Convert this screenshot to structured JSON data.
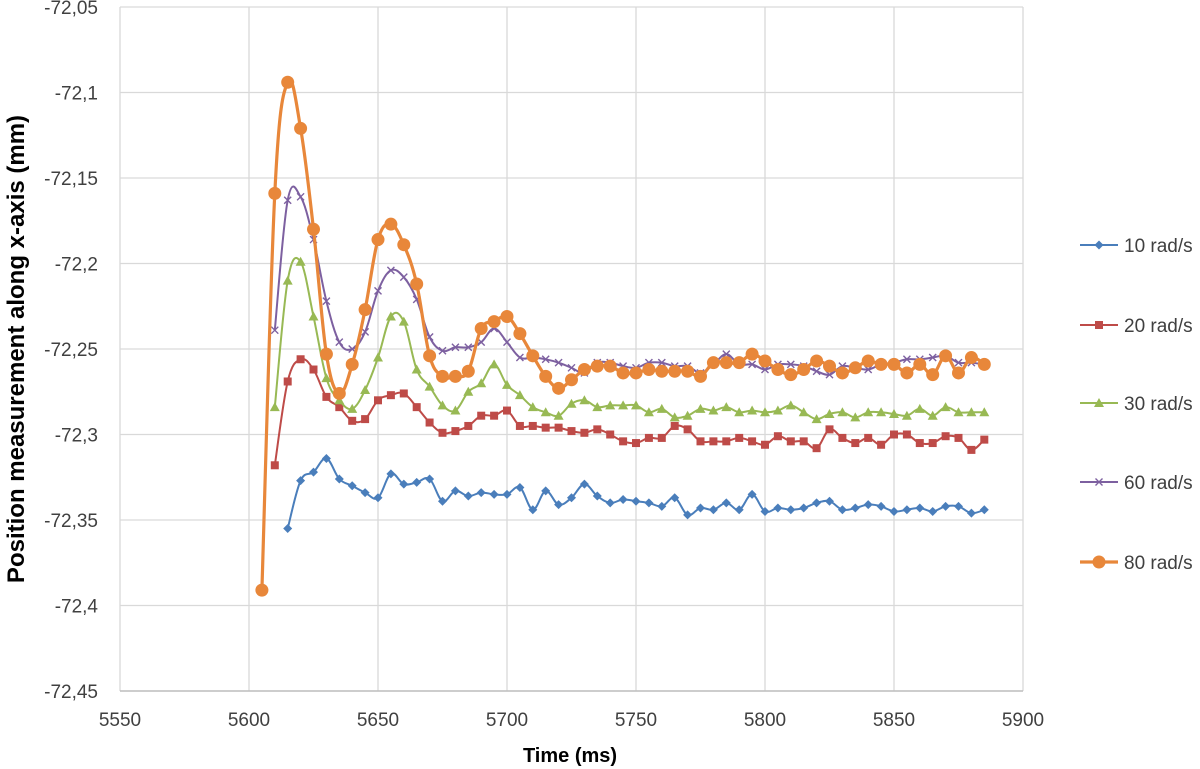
{
  "chart_data": {
    "type": "line",
    "title": "",
    "xlabel": "Time (ms)",
    "ylabel": "Position measurement along x-axis (mm)",
    "xlim": [
      5550,
      5900
    ],
    "ylim": [
      -72.45,
      -72.05
    ],
    "x_ticks": [
      {
        "value": 5550,
        "label": "5550"
      },
      {
        "value": 5600,
        "label": "5600"
      },
      {
        "value": 5650,
        "label": "5650"
      },
      {
        "value": 5700,
        "label": "5700"
      },
      {
        "value": 5750,
        "label": "5750"
      },
      {
        "value": 5800,
        "label": "5800"
      },
      {
        "value": 5850,
        "label": "5850"
      },
      {
        "value": 5900,
        "label": "5900"
      }
    ],
    "y_ticks": [
      {
        "value": -72.05,
        "label": "-72,05"
      },
      {
        "value": -72.1,
        "label": "-72,1"
      },
      {
        "value": -72.15,
        "label": "-72,15"
      },
      {
        "value": -72.2,
        "label": "-72,2"
      },
      {
        "value": -72.25,
        "label": "-72,25"
      },
      {
        "value": -72.3,
        "label": "-72,3"
      },
      {
        "value": -72.35,
        "label": "-72,35"
      },
      {
        "value": -72.4,
        "label": "-72,4"
      },
      {
        "value": -72.45,
        "label": "-72,45"
      }
    ],
    "grid": true,
    "legend_position": "right",
    "series": [
      {
        "name": "10 rad/s",
        "color": "#4a7ebb",
        "marker": "diamond",
        "x": [
          5615,
          5620,
          5625,
          5630,
          5635,
          5640,
          5645,
          5650,
          5655,
          5660,
          5665,
          5670,
          5675,
          5680,
          5685,
          5690,
          5695,
          5700,
          5705,
          5710,
          5715,
          5720,
          5725,
          5730,
          5735,
          5740,
          5745,
          5750,
          5755,
          5760,
          5765,
          5770,
          5775,
          5780,
          5785,
          5790,
          5795,
          5800,
          5805,
          5810,
          5815,
          5820,
          5825,
          5830,
          5835,
          5840,
          5845,
          5850,
          5855,
          5860,
          5865,
          5870,
          5875,
          5880,
          5885
        ],
        "y": [
          -72.355,
          -72.327,
          -72.322,
          -72.314,
          -72.326,
          -72.33,
          -72.334,
          -72.337,
          -72.323,
          -72.329,
          -72.328,
          -72.326,
          -72.339,
          -72.333,
          -72.336,
          -72.334,
          -72.335,
          -72.335,
          -72.331,
          -72.344,
          -72.333,
          -72.341,
          -72.337,
          -72.329,
          -72.336,
          -72.34,
          -72.338,
          -72.339,
          -72.34,
          -72.342,
          -72.337,
          -72.347,
          -72.343,
          -72.344,
          -72.34,
          -72.344,
          -72.335,
          -72.345,
          -72.343,
          -72.344,
          -72.343,
          -72.34,
          -72.339,
          -72.344,
          -72.343,
          -72.341,
          -72.342,
          -72.345,
          -72.344,
          -72.343,
          -72.345,
          -72.342,
          -72.342,
          -72.346,
          -72.344
        ]
      },
      {
        "name": "20 rad/s",
        "color": "#be4b48",
        "marker": "square",
        "x": [
          5610,
          5615,
          5620,
          5625,
          5630,
          5635,
          5640,
          5645,
          5650,
          5655,
          5660,
          5665,
          5670,
          5675,
          5680,
          5685,
          5690,
          5695,
          5700,
          5705,
          5710,
          5715,
          5720,
          5725,
          5730,
          5735,
          5740,
          5745,
          5750,
          5755,
          5760,
          5765,
          5770,
          5775,
          5780,
          5785,
          5790,
          5795,
          5800,
          5805,
          5810,
          5815,
          5820,
          5825,
          5830,
          5835,
          5840,
          5845,
          5850,
          5855,
          5860,
          5865,
          5870,
          5875,
          5880,
          5885
        ],
        "y": [
          -72.318,
          -72.269,
          -72.256,
          -72.262,
          -72.278,
          -72.284,
          -72.292,
          -72.291,
          -72.28,
          -72.277,
          -72.276,
          -72.284,
          -72.293,
          -72.299,
          -72.298,
          -72.295,
          -72.289,
          -72.289,
          -72.286,
          -72.295,
          -72.295,
          -72.296,
          -72.296,
          -72.298,
          -72.299,
          -72.297,
          -72.3,
          -72.304,
          -72.305,
          -72.302,
          -72.302,
          -72.295,
          -72.297,
          -72.304,
          -72.304,
          -72.304,
          -72.302,
          -72.304,
          -72.306,
          -72.301,
          -72.304,
          -72.304,
          -72.308,
          -72.297,
          -72.302,
          -72.305,
          -72.302,
          -72.306,
          -72.3,
          -72.3,
          -72.305,
          -72.305,
          -72.301,
          -72.302,
          -72.309,
          -72.303
        ]
      },
      {
        "name": "30 rad/s",
        "color": "#98b954",
        "marker": "triangle",
        "x": [
          5610,
          5615,
          5620,
          5625,
          5630,
          5635,
          5640,
          5645,
          5650,
          5655,
          5660,
          5665,
          5670,
          5675,
          5680,
          5685,
          5690,
          5695,
          5700,
          5705,
          5710,
          5715,
          5720,
          5725,
          5730,
          5735,
          5740,
          5745,
          5750,
          5755,
          5760,
          5765,
          5770,
          5775,
          5780,
          5785,
          5790,
          5795,
          5800,
          5805,
          5810,
          5815,
          5820,
          5825,
          5830,
          5835,
          5840,
          5845,
          5850,
          5855,
          5860,
          5865,
          5870,
          5875,
          5880,
          5885
        ],
        "y": [
          -72.284,
          -72.21,
          -72.199,
          -72.231,
          -72.267,
          -72.28,
          -72.285,
          -72.274,
          -72.255,
          -72.231,
          -72.234,
          -72.262,
          -72.272,
          -72.283,
          -72.286,
          -72.275,
          -72.27,
          -72.259,
          -72.271,
          -72.277,
          -72.284,
          -72.287,
          -72.289,
          -72.282,
          -72.28,
          -72.284,
          -72.283,
          -72.283,
          -72.283,
          -72.287,
          -72.285,
          -72.29,
          -72.289,
          -72.285,
          -72.286,
          -72.284,
          -72.287,
          -72.286,
          -72.287,
          -72.286,
          -72.283,
          -72.287,
          -72.291,
          -72.288,
          -72.287,
          -72.29,
          -72.287,
          -72.287,
          -72.288,
          -72.289,
          -72.285,
          -72.289,
          -72.284,
          -72.287,
          -72.287,
          -72.287
        ]
      },
      {
        "name": "60 rad/s",
        "color": "#7d60a0",
        "marker": "x",
        "x": [
          5610,
          5615,
          5620,
          5625,
          5630,
          5635,
          5640,
          5645,
          5650,
          5655,
          5660,
          5665,
          5670,
          5675,
          5680,
          5685,
          5690,
          5695,
          5700,
          5705,
          5710,
          5715,
          5720,
          5725,
          5730,
          5735,
          5740,
          5745,
          5750,
          5755,
          5760,
          5765,
          5770,
          5775,
          5780,
          5785,
          5790,
          5795,
          5800,
          5805,
          5810,
          5815,
          5820,
          5825,
          5830,
          5835,
          5840,
          5845,
          5850,
          5855,
          5860,
          5865,
          5870,
          5875,
          5880,
          5885
        ],
        "y": [
          -72.239,
          -72.163,
          -72.161,
          -72.186,
          -72.222,
          -72.246,
          -72.25,
          -72.24,
          -72.216,
          -72.204,
          -72.208,
          -72.221,
          -72.243,
          -72.251,
          -72.249,
          -72.249,
          -72.246,
          -72.238,
          -72.246,
          -72.255,
          -72.255,
          -72.256,
          -72.258,
          -72.261,
          -72.264,
          -72.258,
          -72.258,
          -72.26,
          -72.261,
          -72.258,
          -72.258,
          -72.26,
          -72.26,
          -72.264,
          -72.259,
          -72.253,
          -72.259,
          -72.259,
          -72.262,
          -72.259,
          -72.259,
          -72.26,
          -72.263,
          -72.265,
          -72.26,
          -72.261,
          -72.262,
          -72.259,
          -72.258,
          -72.256,
          -72.256,
          -72.255,
          -72.254,
          -72.258,
          -72.258,
          -72.259
        ]
      },
      {
        "name": "80 rad/s",
        "color": "#e8873a",
        "marker": "circle",
        "x": [
          5605,
          5610,
          5615,
          5620,
          5625,
          5630,
          5635,
          5640,
          5645,
          5650,
          5655,
          5660,
          5665,
          5670,
          5675,
          5680,
          5685,
          5690,
          5695,
          5700,
          5705,
          5710,
          5715,
          5720,
          5725,
          5730,
          5735,
          5740,
          5745,
          5750,
          5755,
          5760,
          5765,
          5770,
          5775,
          5780,
          5785,
          5790,
          5795,
          5800,
          5805,
          5810,
          5815,
          5820,
          5825,
          5830,
          5835,
          5840,
          5845,
          5850,
          5855,
          5860,
          5865,
          5870,
          5875,
          5880,
          5885
        ],
        "y": [
          -72.391,
          -72.159,
          -72.094,
          -72.121,
          -72.18,
          -72.253,
          -72.276,
          -72.259,
          -72.227,
          -72.186,
          -72.177,
          -72.189,
          -72.212,
          -72.254,
          -72.266,
          -72.266,
          -72.263,
          -72.238,
          -72.234,
          -72.231,
          -72.241,
          -72.254,
          -72.266,
          -72.273,
          -72.268,
          -72.262,
          -72.26,
          -72.26,
          -72.264,
          -72.264,
          -72.262,
          -72.263,
          -72.263,
          -72.263,
          -72.266,
          -72.258,
          -72.258,
          -72.258,
          -72.253,
          -72.257,
          -72.262,
          -72.265,
          -72.262,
          -72.257,
          -72.26,
          -72.264,
          -72.261,
          -72.257,
          -72.259,
          -72.259,
          -72.264,
          -72.259,
          -72.265,
          -72.254,
          -72.264,
          -72.255,
          -72.259
        ]
      }
    ]
  }
}
